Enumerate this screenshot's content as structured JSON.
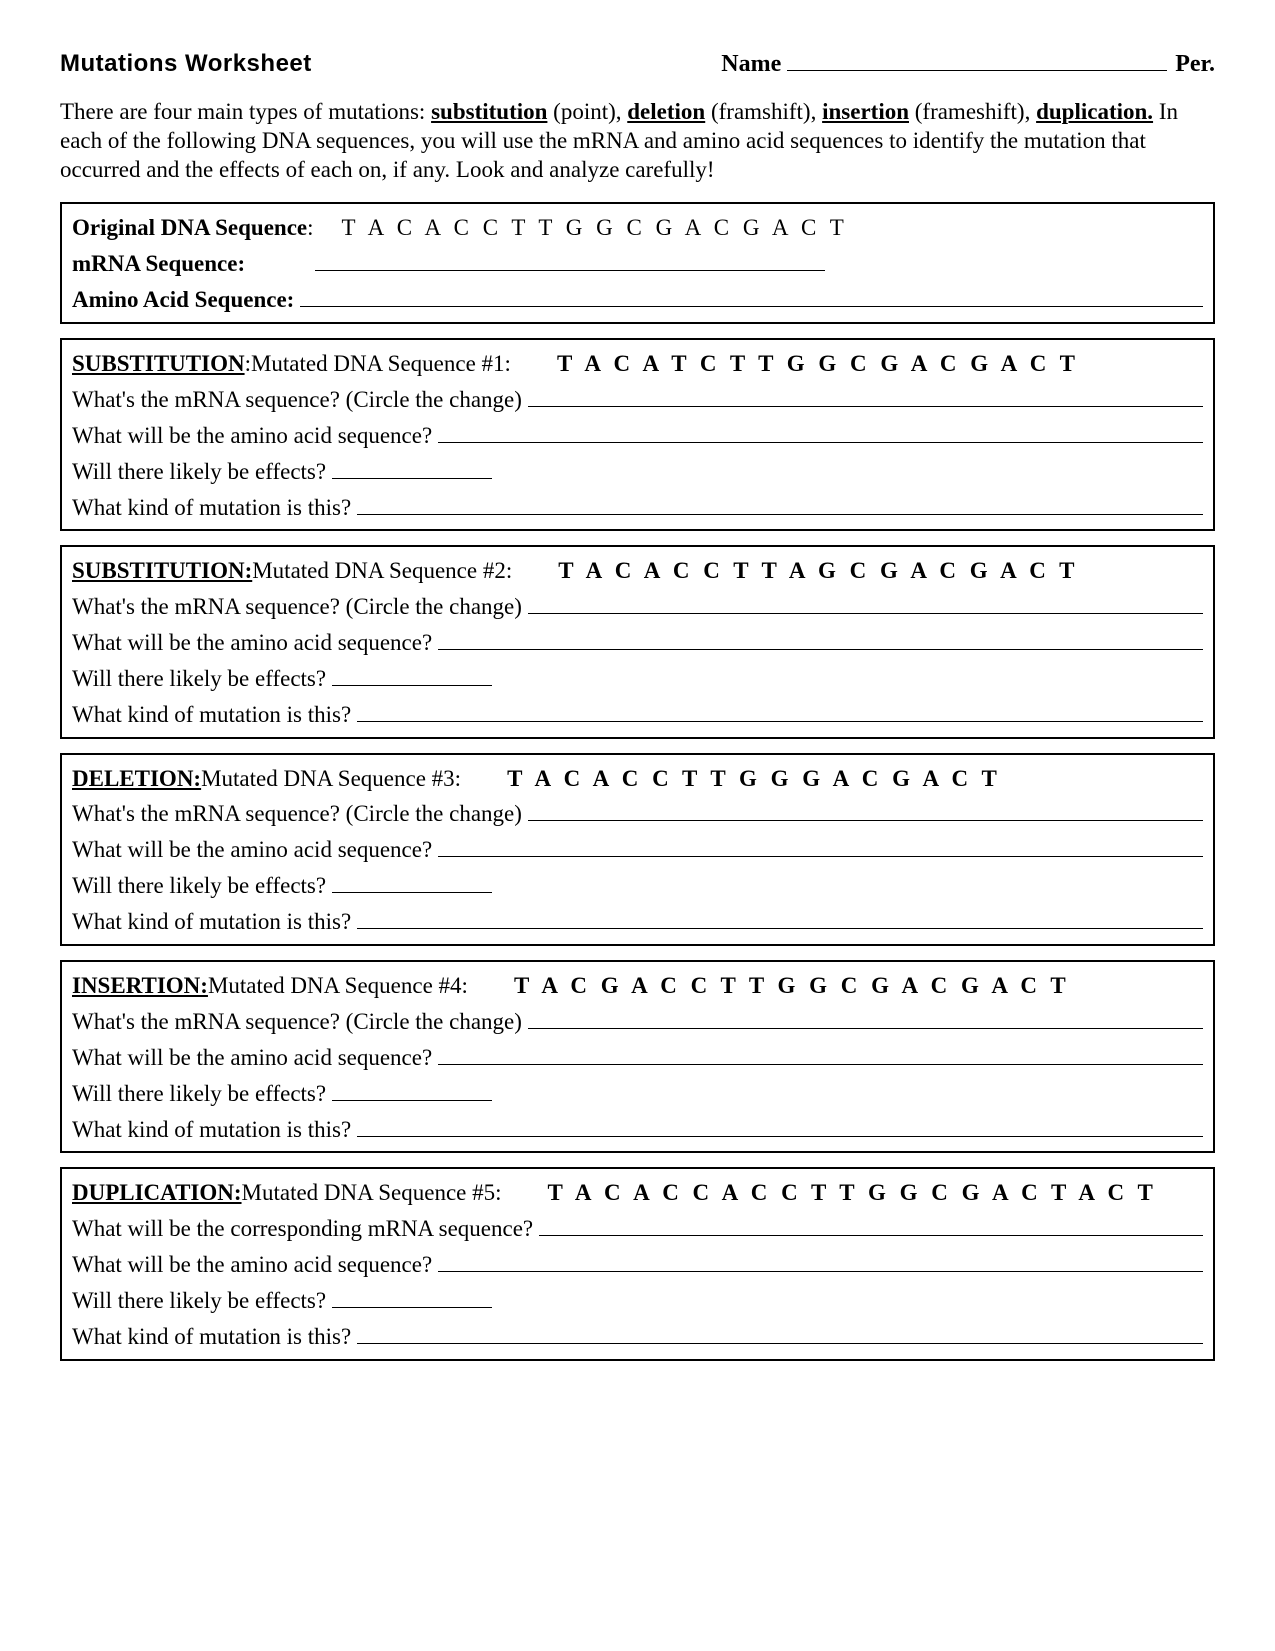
{
  "header": {
    "title": "Mutations Worksheet",
    "name_label": "Name",
    "per_label": "Per."
  },
  "intro": {
    "lead": "There are four main types of mutations: ",
    "m1": "substitution",
    "m1_paren": " (point), ",
    "m2": "deletion",
    "m2_paren": " (framshift), ",
    "m3": "insertion",
    "m3_paren": " (frameshift), ",
    "m4": "duplication.",
    "rest": "  In each of the following DNA sequences, you will use the mRNA and amino acid sequences to identify the mutation that occurred and the effects of each on, if any.  Look and analyze carefully!"
  },
  "original_box": {
    "dna_label": "Original DNA Sequence",
    "dna_seq": "T A C A C C T T G G C G A C G A C T",
    "mrna_label": "mRNA Sequence:",
    "aa_label": "Amino Acid Sequence:"
  },
  "questions": {
    "mrna_circle": "What's the mRNA sequence? (Circle the change)",
    "aa": "What will be the amino acid sequence?",
    "effects": "Will there likely be effects?",
    "kind": "What kind of mutation is this?",
    "mrna_corresp": "What will be the corresponding mRNA sequence?"
  },
  "boxes": [
    {
      "type_label": "SUBSTITUTION",
      "colon": ":",
      "seq_label": " Mutated DNA Sequence #1:",
      "seq": "T A C A T C T T G G C G A C G A C T",
      "q_mrna_key": "mrna_circle"
    },
    {
      "type_label": "SUBSTITUTION:",
      "colon": "",
      "seq_label": "  Mutated DNA Sequence #2:",
      "seq": "T A C A C C T T A G C G A C G A C T",
      "q_mrna_key": "mrna_circle"
    },
    {
      "type_label": "DELETION:",
      "colon": "",
      "seq_label": " Mutated DNA Sequence #3:",
      "seq": "T A C A C C T T G G G A C G A C T",
      "q_mrna_key": "mrna_circle"
    },
    {
      "type_label": "INSERTION:",
      "colon": "",
      "seq_label": "  Mutated DNA Sequence #4:",
      "seq": "T A C G A C C T T G G C G A C G A C T",
      "q_mrna_key": "mrna_circle"
    },
    {
      "type_label": "DUPLICATION:",
      "colon": "",
      "seq_label": " Mutated DNA Sequence #5:",
      "seq": "T A C A C C A C C T T G G C G A C T A C T",
      "q_mrna_key": "mrna_corresp"
    }
  ]
}
